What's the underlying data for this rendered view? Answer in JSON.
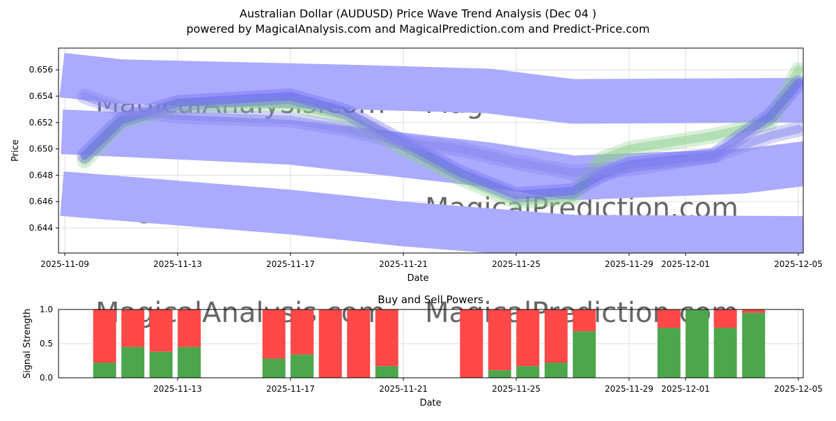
{
  "chart_data": [
    {
      "type": "line",
      "title": "Australian Dollar (AUDUSD) Price Wave Trend Analysis (Dec 04 )",
      "subtitle": "powered by MagicalAnalysis.com and MagicalPrediction.com and Predict-Price.com",
      "xlabel": "Date",
      "ylabel": "Price",
      "xlim_days_from_2025_11_09": [
        -0.25,
        26.3
      ],
      "ylim": [
        0.642,
        0.6576
      ],
      "xticks": [
        {
          "day": 0,
          "label": "2025-11-09"
        },
        {
          "day": 4,
          "label": "2025-11-13"
        },
        {
          "day": 8,
          "label": "2025-11-17"
        },
        {
          "day": 12,
          "label": "2025-11-21"
        },
        {
          "day": 16,
          "label": "2025-11-25"
        },
        {
          "day": 20,
          "label": "2025-11-29"
        },
        {
          "day": 22,
          "label": "2025-12-01"
        },
        {
          "day": 26,
          "label": "2025-12-05"
        }
      ],
      "yticks": [
        0.644,
        0.646,
        0.648,
        0.65,
        0.652,
        0.654,
        0.656
      ],
      "grid": true,
      "bands": [
        {
          "name": "upper band",
          "color": "#aaaaff",
          "points": [
            [
              -0.1,
              0.6556
            ],
            [
              2,
              0.6551
            ],
            [
              10,
              0.6547
            ],
            [
              15,
              0.6544
            ],
            [
              18,
              0.6536
            ],
            [
              26.3,
              0.6537
            ]
          ]
        },
        {
          "name": "middle band",
          "color": "#aaaaff",
          "points": [
            [
              -0.1,
              0.6513
            ],
            [
              8,
              0.6505
            ],
            [
              15,
              0.6488
            ],
            [
              18,
              0.6478
            ],
            [
              24,
              0.6483
            ],
            [
              26.3,
              0.6489
            ]
          ]
        },
        {
          "name": "lower band",
          "color": "#aaaaff",
          "points": [
            [
              -0.1,
              0.6466
            ],
            [
              8,
              0.6452
            ],
            [
              12,
              0.6443
            ],
            [
              18,
              0.6433
            ],
            [
              26.3,
              0.6432
            ]
          ]
        }
      ],
      "series": [
        {
          "name": "green wave",
          "color": "#90d090",
          "points": [
            [
              0.7,
              0.6491
            ],
            [
              2,
              0.652
            ],
            [
              4,
              0.6532
            ],
            [
              8,
              0.6534
            ],
            [
              10,
              0.6524
            ],
            [
              12,
              0.65
            ],
            [
              14,
              0.6478
            ],
            [
              16,
              0.646
            ],
            [
              18,
              0.6463
            ],
            [
              19,
              0.6492
            ],
            [
              20,
              0.65
            ],
            [
              23,
              0.651
            ],
            [
              25,
              0.652
            ],
            [
              26,
              0.656
            ]
          ]
        },
        {
          "name": "blue wave",
          "color": "#6666ee",
          "points": [
            [
              0.7,
              0.6495
            ],
            [
              2,
              0.6522
            ],
            [
              4,
              0.6535
            ],
            [
              8,
              0.654
            ],
            [
              10,
              0.6528
            ],
            [
              12,
              0.6505
            ],
            [
              14,
              0.6482
            ],
            [
              16,
              0.6465
            ],
            [
              18,
              0.6468
            ],
            [
              19,
              0.648
            ],
            [
              20,
              0.6488
            ],
            [
              23,
              0.6495
            ],
            [
              25,
              0.6525
            ],
            [
              26,
              0.655
            ]
          ]
        },
        {
          "name": "blue wave 2",
          "color": "#8888ee",
          "points": [
            [
              0.7,
              0.654
            ],
            [
              2,
              0.653
            ],
            [
              4,
              0.6525
            ],
            [
              8,
              0.6522
            ],
            [
              10,
              0.6515
            ],
            [
              12,
              0.6505
            ],
            [
              14,
              0.65
            ],
            [
              16,
              0.649
            ],
            [
              18,
              0.6482
            ],
            [
              20,
              0.6485
            ],
            [
              23,
              0.6495
            ],
            [
              25,
              0.651
            ],
            [
              26,
              0.6515
            ]
          ]
        }
      ],
      "watermarks": [
        "MagicalAnalysis.com",
        "MagicalPrediction.com"
      ]
    },
    {
      "type": "bar",
      "stacked": true,
      "title": "Buy and Sell Powers",
      "xlabel": "Date",
      "ylabel": "Signal Strength",
      "ylim": [
        0,
        1.0
      ],
      "yticks": [
        "0.0",
        "0.5",
        "1.0"
      ],
      "xticks": [
        {
          "day": 4,
          "label": "2025-11-13"
        },
        {
          "day": 8,
          "label": "2025-11-17"
        },
        {
          "day": 12,
          "label": "2025-11-21"
        },
        {
          "day": 16,
          "label": "2025-11-25"
        },
        {
          "day": 20,
          "label": "2025-11-29"
        },
        {
          "day": 22,
          "label": "2025-12-01"
        },
        {
          "day": 26,
          "label": "2025-12-05"
        }
      ],
      "bar_days": [
        2,
        3,
        4,
        5,
        8,
        9,
        10,
        11,
        12,
        15,
        16,
        17,
        18,
        19,
        22,
        23,
        24,
        25
      ],
      "buy": [
        0.22,
        0.45,
        0.38,
        0.45,
        0.28,
        0.34,
        0,
        0,
        0.17,
        0,
        0.11,
        0.17,
        0.22,
        0.68,
        0.73,
        1.0,
        0.73,
        0.95
      ],
      "buy_color": "#4ca64c",
      "sell_color": "#ff4848",
      "watermarks": [
        "MagicalAnalysis.com",
        "MagicalPrediction.com"
      ]
    }
  ]
}
